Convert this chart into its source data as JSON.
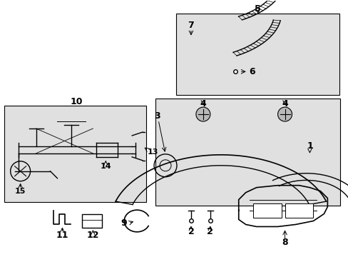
{
  "bg_color": "#ffffff",
  "panel_bg": "#e0e0e0",
  "line_color": "#000000",
  "fig_width": 4.89,
  "fig_height": 3.6,
  "dpi": 100
}
